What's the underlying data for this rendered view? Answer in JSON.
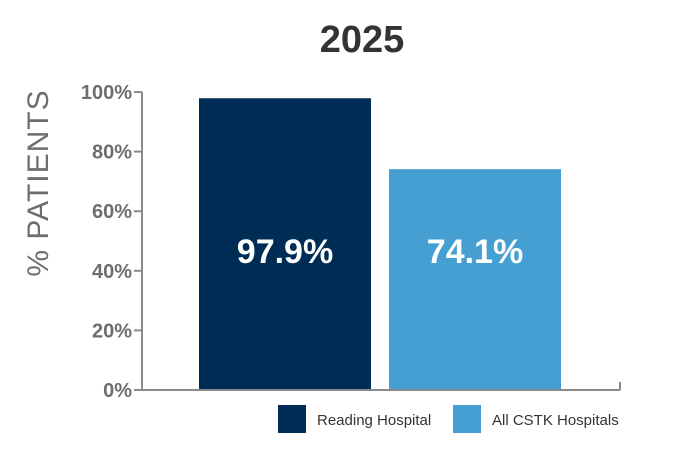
{
  "chart_data": {
    "type": "bar",
    "title": "2025",
    "ylabel": "% PATIENTS",
    "xlabel": "",
    "ylim": [
      0,
      100
    ],
    "y_ticks": [
      0,
      20,
      40,
      60,
      80,
      100
    ],
    "y_tick_labels": [
      "0%",
      "20%",
      "40%",
      "60%",
      "80%",
      "100%"
    ],
    "grid": false,
    "legend_position": "bottom-right",
    "series": [
      {
        "name": "Reading Hospital",
        "value": 97.9,
        "label": "97.9%",
        "color": "#002d55"
      },
      {
        "name": "All CSTK Hospitals",
        "value": 74.1,
        "label": "74.1%",
        "color": "#459fd2"
      }
    ],
    "colors": {
      "axis": "#8a8a8a",
      "tick_text": "#6d6e71",
      "title_text": "#333333",
      "bar_label_text": "#ffffff"
    }
  }
}
